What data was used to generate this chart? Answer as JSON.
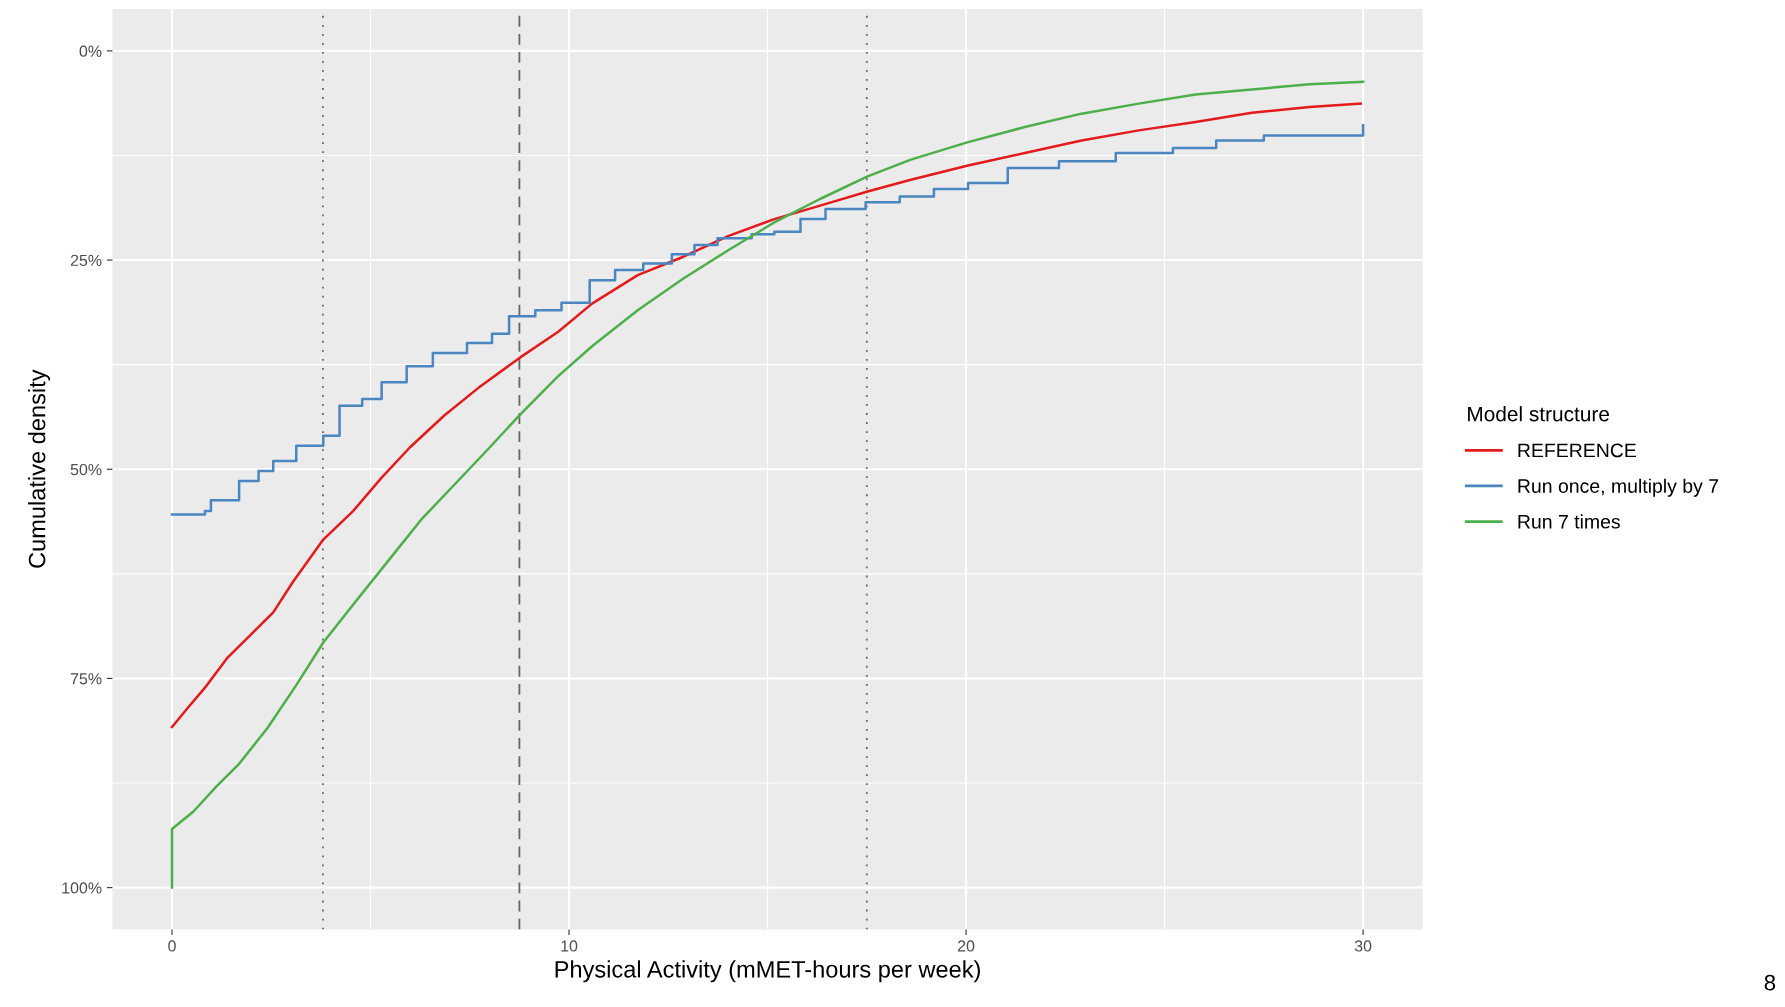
{
  "chart_data": {
    "type": "step",
    "xlabel": "Physical Activity (mMET-hours per week)",
    "ylabel": "Cumulative density",
    "legend_title": "Model structure",
    "legend": "right",
    "grid": true,
    "xlim": [
      -1.5,
      31.5
    ],
    "xticks": [
      0,
      10,
      20,
      30
    ],
    "ylim": [
      105,
      -5
    ],
    "yticks": [
      {
        "value": 0,
        "label": "0%"
      },
      {
        "value": 25,
        "label": "25%"
      },
      {
        "value": 50,
        "label": "50%"
      },
      {
        "value": 75,
        "label": "75%"
      },
      {
        "value": 100,
        "label": "100%"
      }
    ],
    "series": [
      {
        "name": "REFERENCE",
        "type": "line",
        "color": "#e41a1c",
        "x": [
          0,
          0.4,
          0.83,
          1.4,
          1.98,
          2.55,
          3.04,
          3.81,
          4.56,
          5.28,
          5.99,
          6.85,
          7.71,
          8.78,
          9.72,
          10.58,
          11.73,
          12.88,
          14.02,
          15.17,
          16.6,
          17.52,
          18.61,
          20.05,
          21.48,
          22.91,
          24.35,
          25.78,
          27.2,
          28.65,
          29.94
        ],
        "values": [
          80.8,
          78.5,
          76.1,
          72.5,
          69.8,
          67.1,
          63.5,
          58.4,
          55.0,
          51.0,
          47.4,
          43.6,
          40.3,
          36.6,
          33.6,
          30.2,
          26.8,
          24.6,
          22.1,
          20.1,
          18.1,
          16.8,
          15.4,
          13.7,
          12.2,
          10.7,
          9.5,
          8.5,
          7.4,
          6.7,
          6.3
        ]
      },
      {
        "name": "Run once, multiply by 7",
        "color": "#4a86c0",
        "x": [
          0,
          0.83,
          0.98,
          1.69,
          2.18,
          2.55,
          3.13,
          3.81,
          4.22,
          4.79,
          5.28,
          5.91,
          6.57,
          7.43,
          8.06,
          8.49,
          9.15,
          9.81,
          10.52,
          11.16,
          11.87,
          12.59,
          13.16,
          13.74,
          14.6,
          15.17,
          15.83,
          16.46,
          17.47,
          18.33,
          19.19,
          20.05,
          21.05,
          22.34,
          23.77,
          25.21,
          26.3,
          27.5,
          30
        ],
        "values": [
          55.4,
          55.0,
          53.7,
          51.4,
          50.2,
          49.0,
          47.2,
          46.0,
          42.4,
          41.6,
          39.6,
          37.7,
          36.1,
          34.9,
          33.8,
          31.7,
          31.0,
          30.1,
          27.4,
          26.2,
          25.4,
          24.3,
          23.2,
          22.4,
          21.9,
          21.6,
          20.1,
          18.9,
          18.1,
          17.4,
          16.5,
          15.8,
          14.0,
          13.2,
          12.2,
          11.6,
          10.7,
          10.1,
          8.9
        ]
      },
      {
        "name": "Run 7 times",
        "type": "line",
        "color": "#4daf4a",
        "x": [
          0,
          0,
          0.54,
          1.12,
          1.69,
          2.41,
          3.13,
          3.81,
          4.56,
          5.42,
          6.28,
          7.14,
          8.0,
          8.78,
          9.72,
          10.58,
          11.73,
          12.88,
          14.02,
          15.17,
          16.32,
          17.52,
          18.61,
          20.05,
          21.48,
          22.91,
          24.35,
          25.78,
          27.2,
          28.65,
          30
        ],
        "values": [
          100,
          93.0,
          90.9,
          87.9,
          85.2,
          80.9,
          75.8,
          70.7,
          66.2,
          61.1,
          56.0,
          51.7,
          47.4,
          43.4,
          38.9,
          35.3,
          31.0,
          27.2,
          23.8,
          20.5,
          17.7,
          15.0,
          13.0,
          10.9,
          9.1,
          7.5,
          6.3,
          5.2,
          4.6,
          4.0,
          3.7
        ]
      }
    ],
    "ref_lines": [
      {
        "axis": "x",
        "value": 3.8,
        "line_style": "dotted",
        "color": "#666666"
      },
      {
        "axis": "x",
        "value": 8.75,
        "line_style": "dashed",
        "color": "#666666"
      },
      {
        "axis": "x",
        "value": 17.5,
        "line_style": "dotted",
        "color": "#666666"
      }
    ],
    "annotations": [
      "8"
    ]
  }
}
